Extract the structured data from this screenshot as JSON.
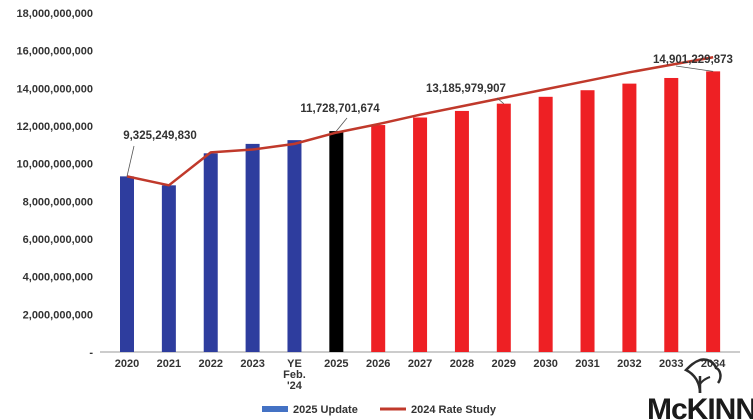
{
  "chart_data": {
    "type": "bar",
    "title": "",
    "xlabel": "",
    "ylabel": "",
    "ylim": [
      0,
      18000000000
    ],
    "yticks": [
      0,
      2000000000,
      4000000000,
      6000000000,
      8000000000,
      10000000000,
      12000000000,
      14000000000,
      16000000000,
      18000000000
    ],
    "ytick_labels": [
      "-",
      "2,000,000,000",
      "4,000,000,000",
      "6,000,000,000",
      "8,000,000,000",
      "10,000,000,000",
      "12,000,000,000",
      "14,000,000,000",
      "16,000,000,000",
      "18,000,000,000"
    ],
    "categories": [
      "2020",
      "2021",
      "2022",
      "2023",
      "YE Feb. '24",
      "2025",
      "2026",
      "2027",
      "2028",
      "2029",
      "2030",
      "2031",
      "2032",
      "2033",
      "2034"
    ],
    "category_lines": [
      [
        "2020"
      ],
      [
        "2021"
      ],
      [
        "2022"
      ],
      [
        "2023"
      ],
      [
        "YE",
        "Feb.",
        "'24"
      ],
      [
        "2025"
      ],
      [
        "2026"
      ],
      [
        "2027"
      ],
      [
        "2028"
      ],
      [
        "2029"
      ],
      [
        "2030"
      ],
      [
        "2031"
      ],
      [
        "2032"
      ],
      [
        "2033"
      ],
      [
        "2034"
      ]
    ],
    "series": [
      {
        "name": "2025 Update",
        "type": "bar",
        "values": [
          9325249830,
          8850000000,
          10550000000,
          11050000000,
          11250000000,
          11728701674,
          12050000000,
          12450000000,
          12800000000,
          13185979907,
          13550000000,
          13900000000,
          14250000000,
          14550000000,
          14901229873
        ],
        "bar_colors": [
          "#2e3d9e",
          "#2e3d9e",
          "#2e3d9e",
          "#2e3d9e",
          "#2e3d9e",
          "#000000",
          "#ee2024",
          "#ee2024",
          "#ee2024",
          "#ee2024",
          "#ee2024",
          "#ee2024",
          "#ee2024",
          "#ee2024",
          "#ee2024"
        ]
      },
      {
        "name": "2024 Rate Study",
        "type": "line",
        "color": "#c0392b",
        "values": [
          9325249830,
          8850000000,
          10600000000,
          10750000000,
          11050000000,
          11650000000,
          12100000000,
          12600000000,
          13050000000,
          13500000000,
          13950000000,
          14400000000,
          14850000000,
          15250000000,
          15650000000
        ]
      }
    ],
    "data_labels": [
      {
        "index": 0,
        "text": "9,325,249,830"
      },
      {
        "index": 5,
        "text": "11,728,701,674"
      },
      {
        "index": 9,
        "text": "13,185,979,907"
      },
      {
        "index": 14,
        "text": "14,901,229,873"
      }
    ],
    "legend": {
      "position": "bottom",
      "items": [
        {
          "label": "2025 Update",
          "color": "#4472c4",
          "kind": "bar"
        },
        {
          "label": "2024 Rate Study",
          "color": "#c0392b",
          "kind": "line"
        }
      ]
    },
    "grid": false
  },
  "logo": {
    "text": "McKINN",
    "icon": "tree-icon"
  }
}
